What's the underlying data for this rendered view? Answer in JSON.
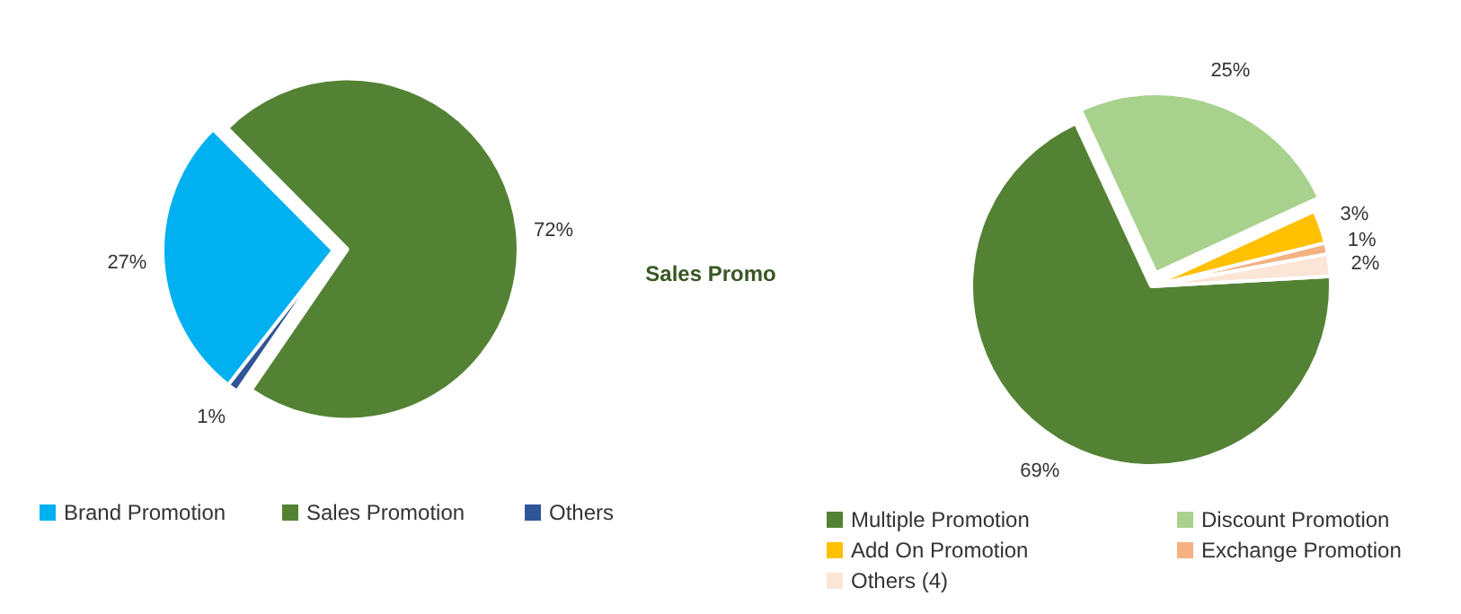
{
  "chart_data": [
    {
      "type": "pie",
      "categories": [
        "Brand Promotion",
        "Sales Promotion",
        "Others"
      ],
      "values": [
        27,
        72,
        1
      ],
      "colors": [
        "#00b0f0",
        "#548235",
        "#2f5597"
      ],
      "value_labels": [
        "27%",
        "72%",
        "1%"
      ],
      "legend": "bottom",
      "annotations": [
        "Sales Promo"
      ]
    },
    {
      "type": "pie",
      "categories": [
        "Multiple Promotion",
        "Discount Promotion",
        "Add On Promotion",
        "Exchange Promotion",
        "Others (4)"
      ],
      "values": [
        69,
        25,
        3,
        1,
        2
      ],
      "colors": [
        "#548235",
        "#a9d18e",
        "#ffc000",
        "#f4b183",
        "#fbe5d6"
      ],
      "value_labels": [
        "69%",
        "25%",
        "3%",
        "1%",
        "2%"
      ],
      "legend": "bottom"
    }
  ]
}
